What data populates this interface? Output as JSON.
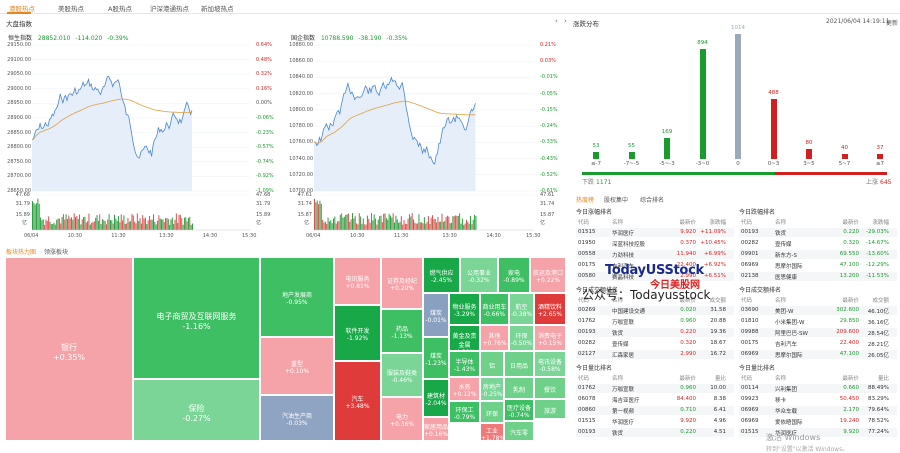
{
  "nav": {
    "tabs": [
      "港股热点",
      "美股热点",
      "A股热点",
      "沪深港通热点",
      "新加坡热点"
    ]
  },
  "left": {
    "section_title": "大盘指数",
    "chart1": {
      "name": "恒生指数",
      "value": "28852.010",
      "change": "-114.020",
      "pct": "-0.39%",
      "ylabels": [
        "29150.00",
        "29100.00",
        "29050.00",
        "29000.00",
        "28950.00",
        "28900.00",
        "28850.00",
        "28800.00",
        "28750.00",
        "28700.00",
        "28650.00"
      ],
      "pctlabels": [
        "0.64%",
        "0.48%",
        "0.32%",
        "0.16%",
        "0.00%",
        "-0.06%",
        "-0.23%",
        "-0.57%",
        "-0.74%",
        "-0.92%",
        "-1.09%"
      ],
      "vol": [
        "47.68",
        "31.79",
        "15.89",
        "亿"
      ],
      "xlabels": [
        "06/04",
        "10:30",
        "11:30",
        "13:30",
        "14:30",
        "15:30"
      ]
    },
    "chart2": {
      "name": "国企指数",
      "value": "10788.590",
      "change": "-38.190",
      "pct": "-0.35%",
      "ylabels": [
        "10880.00",
        "10860.00",
        "10840.00",
        "10820.00",
        "10800.00",
        "10780.00",
        "10760.00",
        "10740.00",
        "10720.00",
        "10700.00"
      ],
      "pctlabels": [
        "0.21%",
        "0.03%",
        "-0.01%",
        "-0.05%",
        "-0.15%",
        "-0.24%",
        "-0.33%",
        "-0.43%",
        "-0.52%",
        "-0.61%"
      ],
      "vol": [
        "47.61",
        "31.74",
        "15.87",
        "亿"
      ],
      "xlabels": [
        "06/04",
        "10:30",
        "11:30",
        "13:30",
        "14:30",
        "15:30"
      ]
    }
  },
  "heatmap": {
    "tabs": [
      "板块热力图",
      "领涨板块"
    ],
    "tiles": [
      {
        "name": "银行",
        "pct": "+0.35%"
      },
      {
        "name": "电子商贸及互联网服务",
        "pct": "-1.16%"
      },
      {
        "name": "保险",
        "pct": "-0.27%"
      },
      {
        "name": "地产发展商",
        "pct": "-0.95%"
      },
      {
        "name": "重型",
        "pct": "+0.10%"
      },
      {
        "name": "汽油生产商",
        "pct": "-0.03%"
      },
      {
        "name": "电讯服务",
        "pct": "+0.81%"
      },
      {
        "name": "软件开发",
        "pct": "-1.92%"
      },
      {
        "name": "汽车",
        "pct": "+3.48%"
      },
      {
        "name": "证券及经纪",
        "pct": "+0.20%"
      },
      {
        "name": "药品",
        "pct": "-1.13%"
      },
      {
        "name": "服装及鞋类",
        "pct": "-0.46%"
      },
      {
        "name": "电力",
        "pct": "+0.36%"
      },
      {
        "name": "燃气供应",
        "pct": "-2.45%"
      },
      {
        "name": "公用事业",
        "pct": "-0.32%"
      },
      {
        "name": "家电",
        "pct": "-0.89%"
      },
      {
        "name": "航运及港口",
        "pct": "+0.22%"
      },
      {
        "name": "煤炭",
        "pct": "-0.01%"
      },
      {
        "name": "物业服务",
        "pct": "-3.29%"
      },
      {
        "name": "商业用车",
        "pct": "-0.66%"
      },
      {
        "name": "航空",
        "pct": "-0.38%"
      },
      {
        "name": "酒精饮料",
        "pct": "+2.65%"
      },
      {
        "name": "黄金及贵金属",
        "pct": "-4.50%"
      },
      {
        "name": "其他",
        "pct": "+0.76%"
      },
      {
        "name": "环保",
        "pct": "-0.50%"
      },
      {
        "name": "消费电子",
        "pct": "+0.15%"
      },
      {
        "name": "电讯设备",
        "pct": "-0.58%"
      },
      {
        "name": "煤炭",
        "pct": "-1.23%"
      },
      {
        "name": "半导体",
        "pct": "-1.43%"
      },
      {
        "name": "铝",
        "pct": ""
      },
      {
        "name": "日用品",
        "pct": ""
      },
      {
        "name": "餐饮",
        "pct": ""
      },
      {
        "name": "建筑材",
        "pct": "-2.04%"
      },
      {
        "name": "水务",
        "pct": "+0.12%"
      },
      {
        "name": "房地产",
        "pct": "-0.25%"
      },
      {
        "name": "乳制",
        "pct": ""
      },
      {
        "name": "旅游",
        "pct": ""
      },
      {
        "name": "家居用品",
        "pct": "+0.16%"
      },
      {
        "name": "环保工",
        "pct": "-0.79%"
      },
      {
        "name": "环保",
        "pct": ""
      },
      {
        "name": "医疗设备",
        "pct": "-0.74%"
      },
      {
        "name": "工业",
        "pct": "+1.78%"
      },
      {
        "name": "汽车零",
        "pct": ""
      }
    ]
  },
  "distribution": {
    "title": "涨跌分布",
    "datetime": "2021/06/04 14:19:11",
    "refresh": "更新",
    "bars": [
      {
        "label": "≤-7",
        "value": "53",
        "v": 53,
        "color": "#1a9b2e"
      },
      {
        "label": "-7~-5",
        "value": "55",
        "v": 55,
        "color": "#1a9b2e"
      },
      {
        "label": "-5~-3",
        "value": "169",
        "v": 169,
        "color": "#1a9b2e"
      },
      {
        "label": "-3~0",
        "value": "894",
        "v": 894,
        "color": "#1a9b2e"
      },
      {
        "label": "0",
        "value": "1014",
        "v": 1014,
        "color": "#9aaabb"
      },
      {
        "label": "0~3",
        "value": "488",
        "v": 488,
        "color": "#d02020"
      },
      {
        "label": "3~5",
        "value": "80",
        "v": 80,
        "color": "#d02020"
      },
      {
        "label": "5~7",
        "value": "40",
        "v": 40,
        "color": "#d02020"
      },
      {
        "label": "≥7",
        "value": "37",
        "v": 37,
        "color": "#d02020"
      }
    ],
    "down_label": "下跌",
    "down": "1171",
    "up_label": "上涨",
    "up": "645"
  },
  "ranking": {
    "tabs": [
      "热度榜",
      "股权集中",
      "综合排名"
    ],
    "tables": [
      {
        "title": "今日涨幅排名",
        "cols": [
          "代码",
          "名称",
          "最新价",
          "涨跌幅"
        ],
        "rows": [
          [
            "01515",
            "华润医疗",
            "9.920",
            "+11.09%"
          ],
          [
            "01950",
            "深蓝科技控股",
            "0.370",
            "+10.45%"
          ],
          [
            "00558",
            "力劲科技",
            "11.940",
            "+6.99%"
          ],
          [
            "00175",
            "吉利汽车",
            "22.400",
            "+6.92%"
          ],
          [
            "00580",
            "赛晶科技",
            "2.990",
            "+6.51%"
          ]
        ]
      },
      {
        "title": "今日跌幅排名",
        "cols": [
          "代码",
          "名称",
          "最新价",
          "涨跌幅"
        ],
        "rows": [
          [
            "00193",
            "铁货",
            "0.220",
            "-29.03%"
          ],
          [
            "00282",
            "壹传媒",
            "0.320",
            "-14.67%"
          ],
          [
            "09901",
            "新东方-S",
            "69.550",
            "-13.60%"
          ],
          [
            "06969",
            "思摩尔国际",
            "47.100",
            "-12.29%"
          ],
          [
            "02138",
            "医思健康",
            "13.200",
            "-11.53%"
          ]
        ]
      },
      {
        "title": "今日成交额排名",
        "cols": [
          "代码",
          "名称",
          "最新价",
          "成交额"
        ],
        "rows": [
          [
            "00269",
            "中国建设交通",
            "0.020",
            "31.58"
          ],
          [
            "01762",
            "万咖宣联",
            "0.960",
            "20.88"
          ],
          [
            "00193",
            "铁货",
            "0.220",
            "19.36"
          ],
          [
            "00282",
            "壹传媒",
            "0.320",
            "18.67"
          ],
          [
            "02127",
            "汇森家居",
            "2.990",
            "16.72"
          ]
        ]
      },
      {
        "title": "今日成交额排名",
        "cols": [
          "代码",
          "名称",
          "最新价",
          "成交额"
        ],
        "rows": [
          [
            "03690",
            "美团-W",
            "302.600",
            "46.10亿"
          ],
          [
            "01810",
            "小米集团-W",
            "29.850",
            "36.16亿"
          ],
          [
            "09988",
            "阿里巴巴-SW",
            "209.600",
            "28.54亿"
          ],
          [
            "00175",
            "吉利汽车",
            "22.400",
            "28.21亿"
          ],
          [
            "06969",
            "思摩尔国际",
            "47.100",
            "26.05亿"
          ]
        ]
      },
      {
        "title": "今日量比排名",
        "cols": [
          "代码",
          "名称",
          "最新价",
          "量比"
        ],
        "rows": [
          [
            "01762",
            "万咖宣联",
            "0.960",
            "10.00"
          ],
          [
            "06078",
            "海吉亚医疗",
            "84.400",
            "8.38"
          ],
          [
            "00860",
            "第一视频",
            "0.710",
            "6.41"
          ],
          [
            "01515",
            "华润医疗",
            "9.920",
            "4.96"
          ],
          [
            "00193",
            "铁货",
            "0.220",
            "4.51"
          ]
        ]
      },
      {
        "title": "今日量比排名",
        "cols": [
          "代码",
          "名称",
          "最新价",
          "量比"
        ],
        "rows": [
          [
            "00114",
            "兴利集团",
            "0.660",
            "88.49%"
          ],
          [
            "09923",
            "移卡",
            "50.450",
            "83.29%"
          ],
          [
            "06969",
            "华众车载",
            "2.170",
            "79.64%"
          ],
          [
            "06969",
            "爱依晤国际",
            "19.240",
            "78.52%"
          ],
          [
            "01515",
            "华润医疗",
            "9.920",
            "77.24%"
          ]
        ]
      }
    ]
  },
  "watermark": {
    "brand1": "TodayUSStock",
    "brand2": "今日美股网",
    "text": "公众号：Todayusstock",
    "os": "激活 Windows",
    "os2": "转到\"设置\"以激活 Windows。"
  }
}
